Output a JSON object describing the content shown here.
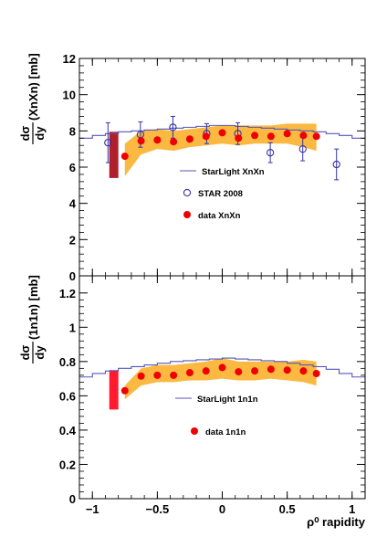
{
  "colors": {
    "band": "#fbb942",
    "data_marker": "#ee0000",
    "star_marker": "#3333aa",
    "starlight_line": "#5555bb",
    "sys_box_top": "#b0202a",
    "sys_box_bottom": "#ff1a2e",
    "frame": "#000000"
  },
  "chart_data": [
    {
      "id": "top",
      "type": "scatter",
      "ylabel_frac": {
        "num": "dσ",
        "den": "dy"
      },
      "ylabel_rest": "(XnXn) [mb]",
      "xlim": [
        -1.1,
        1.1
      ],
      "ylim": [
        0,
        12
      ],
      "yticks": [
        0,
        2,
        4,
        6,
        8,
        10,
        12
      ],
      "ytick_labels": [
        "0",
        "2",
        "4",
        "6",
        "8",
        "10",
        "12"
      ],
      "legend": [
        {
          "label": "StarLight XnXn",
          "marker": "line"
        },
        {
          "label": "STAR 2008",
          "marker": "open-circle"
        },
        {
          "label": "data XnXn",
          "marker": "filled-circle"
        }
      ],
      "series": [
        {
          "name": "StarLight XnXn",
          "kind": "step",
          "edges": [
            -1.1,
            -1.0,
            -0.9,
            -0.8,
            -0.7,
            -0.6,
            -0.5,
            -0.4,
            -0.3,
            -0.2,
            -0.1,
            0.0,
            0.1,
            0.2,
            0.3,
            0.4,
            0.5,
            0.6,
            0.7,
            0.8,
            0.9,
            1.0,
            1.1
          ],
          "values": [
            7.6,
            7.75,
            7.85,
            7.95,
            8.0,
            8.05,
            8.1,
            8.15,
            8.2,
            8.25,
            8.3,
            8.3,
            8.25,
            8.2,
            8.15,
            8.1,
            8.05,
            8.0,
            7.95,
            7.85,
            7.75,
            7.6
          ]
        },
        {
          "name": "STAR 2008",
          "kind": "open-circle",
          "x": [
            -0.88,
            -0.63,
            -0.38,
            -0.12,
            0.12,
            0.37,
            0.62,
            0.88
          ],
          "y": [
            7.35,
            7.8,
            8.2,
            7.85,
            7.85,
            6.8,
            7.0,
            6.15
          ],
          "yerr": [
            1.1,
            0.7,
            0.6,
            0.55,
            0.6,
            0.55,
            0.65,
            0.85
          ]
        },
        {
          "name": "data XnXn",
          "kind": "filled-circle",
          "x": [
            -0.75,
            -0.625,
            -0.5,
            -0.375,
            -0.25,
            -0.125,
            0.0,
            0.125,
            0.25,
            0.375,
            0.5,
            0.625,
            0.725
          ],
          "y": [
            6.6,
            7.45,
            7.5,
            7.4,
            7.55,
            7.7,
            7.9,
            7.6,
            7.75,
            7.7,
            7.85,
            7.75,
            7.7
          ]
        }
      ],
      "band": {
        "x": [
          -0.75,
          -0.625,
          -0.5,
          -0.375,
          -0.25,
          -0.125,
          0.0,
          0.125,
          0.25,
          0.375,
          0.5,
          0.625,
          0.725
        ],
        "low": [
          5.5,
          6.7,
          7.0,
          6.9,
          7.1,
          7.2,
          7.3,
          7.2,
          7.3,
          7.3,
          7.3,
          7.1,
          6.9
        ],
        "high": [
          7.3,
          8.0,
          8.1,
          8.0,
          8.1,
          8.2,
          8.3,
          8.3,
          8.3,
          8.3,
          8.4,
          8.4,
          8.4
        ]
      },
      "sys_box": {
        "x0": -0.87,
        "x1": -0.8,
        "y0": 5.4,
        "y1": 7.95,
        "color_key": "sys_box_top"
      }
    },
    {
      "id": "bottom",
      "type": "scatter",
      "ylabel_frac": {
        "num": "dσ",
        "den": "dy"
      },
      "ylabel_rest": "(1n1n) [mb]",
      "xlabel": "ρ⁰ rapidity",
      "xlim": [
        -1.1,
        1.1
      ],
      "ylim": [
        0,
        1.3
      ],
      "xticks": [
        -1,
        -0.5,
        0,
        0.5,
        1
      ],
      "xtick_labels": [
        "−1",
        "−0.5",
        "0",
        "0.5",
        "1"
      ],
      "yticks": [
        0,
        0.2,
        0.4,
        0.6,
        0.8,
        1.0,
        1.2
      ],
      "ytick_labels": [
        "0",
        "0.2",
        "0.4",
        "0.6",
        "0.8",
        "1",
        "1.2"
      ],
      "legend": [
        {
          "label": "StarLight 1n1n",
          "marker": "line"
        },
        {
          "label": "data 1n1n",
          "marker": "filled-circle"
        }
      ],
      "series": [
        {
          "name": "StarLight 1n1n",
          "kind": "step",
          "edges": [
            -1.1,
            -1.0,
            -0.9,
            -0.8,
            -0.7,
            -0.6,
            -0.5,
            -0.4,
            -0.3,
            -0.2,
            -0.1,
            0.0,
            0.1,
            0.2,
            0.3,
            0.4,
            0.5,
            0.6,
            0.7,
            0.8,
            0.9,
            1.0,
            1.1
          ],
          "values": [
            0.71,
            0.73,
            0.745,
            0.76,
            0.77,
            0.78,
            0.79,
            0.8,
            0.805,
            0.81,
            0.815,
            0.82,
            0.815,
            0.81,
            0.805,
            0.8,
            0.79,
            0.78,
            0.77,
            0.755,
            0.73,
            0.71
          ]
        },
        {
          "name": "data 1n1n",
          "kind": "filled-circle",
          "x": [
            -0.75,
            -0.625,
            -0.5,
            -0.375,
            -0.25,
            -0.125,
            0.0,
            0.125,
            0.25,
            0.375,
            0.5,
            0.625,
            0.725
          ],
          "y": [
            0.63,
            0.715,
            0.72,
            0.72,
            0.735,
            0.745,
            0.765,
            0.74,
            0.745,
            0.755,
            0.75,
            0.745,
            0.73
          ]
        }
      ],
      "band": {
        "x": [
          -0.75,
          -0.625,
          -0.5,
          -0.375,
          -0.25,
          -0.125,
          0.0,
          0.125,
          0.25,
          0.375,
          0.5,
          0.625,
          0.725
        ],
        "low": [
          0.58,
          0.66,
          0.68,
          0.68,
          0.69,
          0.69,
          0.7,
          0.69,
          0.69,
          0.7,
          0.69,
          0.68,
          0.66
        ],
        "high": [
          0.66,
          0.76,
          0.78,
          0.78,
          0.79,
          0.8,
          0.82,
          0.8,
          0.8,
          0.8,
          0.8,
          0.81,
          0.8
        ]
      },
      "sys_box": {
        "x0": -0.87,
        "x1": -0.8,
        "y0": 0.52,
        "y1": 0.75,
        "color_key": "sys_box_bottom"
      }
    }
  ]
}
